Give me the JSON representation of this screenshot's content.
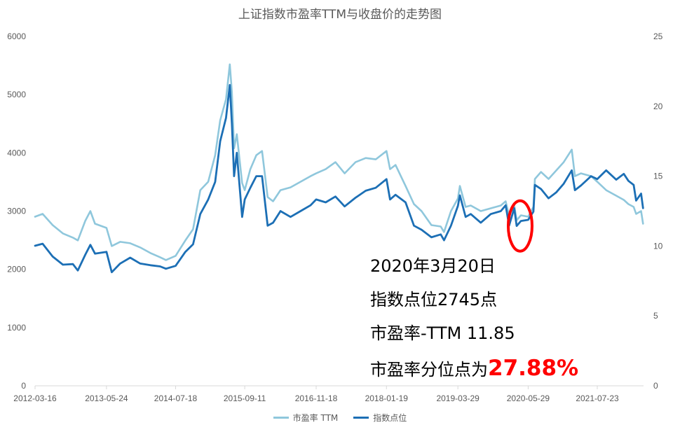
{
  "chart_data": {
    "type": "line",
    "title": "上证指数市盈率TTM与收盘价的走势图",
    "x_ticks": [
      "2012-03-16",
      "2013-05-24",
      "2014-07-18",
      "2015-09-11",
      "2016-11-18",
      "2018-01-19",
      "2019-03-29",
      "2020-05-29",
      "2021-07-23"
    ],
    "x_range": [
      "2012-03-16",
      "2022-04-30"
    ],
    "y_left": {
      "range": [
        0,
        6000
      ],
      "ticks": [
        "0",
        "1000",
        "2000",
        "3000",
        "4000",
        "5000",
        "6000"
      ]
    },
    "y_right": {
      "range": [
        0,
        25
      ],
      "ticks": [
        "0",
        "5",
        "10",
        "15",
        "20",
        "25"
      ]
    },
    "grid": false,
    "legend_position": "bottom",
    "series": [
      {
        "name": "市盈率 TTM",
        "axis": "right",
        "color": "#8fc7dc",
        "points": [
          [
            "2012-03-16",
            12.1
          ],
          [
            "2012-05-01",
            12.3
          ],
          [
            "2012-07-01",
            11.5
          ],
          [
            "2012-09-01",
            10.9
          ],
          [
            "2012-11-01",
            10.6
          ],
          [
            "2012-12-01",
            10.4
          ],
          [
            "2013-01-15",
            11.8
          ],
          [
            "2013-02-15",
            12.5
          ],
          [
            "2013-03-15",
            11.6
          ],
          [
            "2013-05-24",
            11.3
          ],
          [
            "2013-06-25",
            10.0
          ],
          [
            "2013-08-15",
            10.3
          ],
          [
            "2013-10-15",
            10.2
          ],
          [
            "2013-12-15",
            9.9
          ],
          [
            "2014-02-15",
            9.5
          ],
          [
            "2014-04-15",
            9.2
          ],
          [
            "2014-05-20",
            9.0
          ],
          [
            "2014-07-18",
            9.3
          ],
          [
            "2014-09-15",
            10.4
          ],
          [
            "2014-11-01",
            11.2
          ],
          [
            "2014-12-15",
            14.0
          ],
          [
            "2015-02-01",
            14.6
          ],
          [
            "2015-03-15",
            16.5
          ],
          [
            "2015-04-15",
            19.0
          ],
          [
            "2015-05-20",
            20.5
          ],
          [
            "2015-06-12",
            23.0
          ],
          [
            "2015-06-25",
            21.0
          ],
          [
            "2015-07-08",
            17.0
          ],
          [
            "2015-07-25",
            18.0
          ],
          [
            "2015-08-26",
            14.5
          ],
          [
            "2015-09-11",
            14.0
          ],
          [
            "2015-10-15",
            15.5
          ],
          [
            "2015-11-20",
            16.5
          ],
          [
            "2015-12-25",
            16.8
          ],
          [
            "2016-01-28",
            13.5
          ],
          [
            "2016-03-01",
            13.2
          ],
          [
            "2016-04-15",
            14.0
          ],
          [
            "2016-06-15",
            14.2
          ],
          [
            "2016-08-15",
            14.6
          ],
          [
            "2016-10-15",
            15.0
          ],
          [
            "2016-11-18",
            15.2
          ],
          [
            "2017-01-15",
            15.5
          ],
          [
            "2017-03-15",
            16.0
          ],
          [
            "2017-05-10",
            15.2
          ],
          [
            "2017-07-15",
            16.0
          ],
          [
            "2017-09-15",
            16.3
          ],
          [
            "2017-11-15",
            16.2
          ],
          [
            "2018-01-19",
            16.8
          ],
          [
            "2018-02-10",
            15.5
          ],
          [
            "2018-03-15",
            15.8
          ],
          [
            "2018-05-15",
            14.3
          ],
          [
            "2018-07-05",
            13.0
          ],
          [
            "2018-08-20",
            12.5
          ],
          [
            "2018-10-19",
            11.5
          ],
          [
            "2018-12-15",
            11.4
          ],
          [
            "2019-01-04",
            11.0
          ],
          [
            "2019-02-15",
            12.5
          ],
          [
            "2019-03-29",
            13.4
          ],
          [
            "2019-04-10",
            14.3
          ],
          [
            "2019-05-15",
            12.8
          ],
          [
            "2019-06-15",
            12.9
          ],
          [
            "2019-08-15",
            12.5
          ],
          [
            "2019-10-15",
            12.7
          ],
          [
            "2019-12-15",
            12.9
          ],
          [
            "2020-01-13",
            13.2
          ],
          [
            "2020-02-03",
            12.2
          ],
          [
            "2020-03-05",
            12.9
          ],
          [
            "2020-03-20",
            11.85
          ],
          [
            "2020-04-15",
            12.2
          ],
          [
            "2020-05-29",
            12.1
          ],
          [
            "2020-06-30",
            12.8
          ],
          [
            "2020-07-09",
            14.8
          ],
          [
            "2020-08-15",
            15.3
          ],
          [
            "2020-09-30",
            14.8
          ],
          [
            "2020-11-15",
            15.4
          ],
          [
            "2020-12-31",
            16.0
          ],
          [
            "2021-02-18",
            16.9
          ],
          [
            "2021-03-09",
            15.0
          ],
          [
            "2021-04-15",
            15.2
          ],
          [
            "2021-06-15",
            15.0
          ],
          [
            "2021-07-23",
            14.6
          ],
          [
            "2021-09-15",
            14.0
          ],
          [
            "2021-11-15",
            13.6
          ],
          [
            "2021-12-31",
            13.3
          ],
          [
            "2022-01-28",
            13.0
          ],
          [
            "2022-03-01",
            12.8
          ],
          [
            "2022-03-16",
            12.3
          ],
          [
            "2022-04-15",
            12.5
          ],
          [
            "2022-04-27",
            11.6
          ]
        ]
      },
      {
        "name": "指数点位",
        "axis": "left",
        "color": "#1c6fb5",
        "points": [
          [
            "2012-03-16",
            2405
          ],
          [
            "2012-05-01",
            2440
          ],
          [
            "2012-07-01",
            2220
          ],
          [
            "2012-09-01",
            2080
          ],
          [
            "2012-11-01",
            2090
          ],
          [
            "2012-12-01",
            1980
          ],
          [
            "2013-01-15",
            2250
          ],
          [
            "2013-02-15",
            2420
          ],
          [
            "2013-03-15",
            2270
          ],
          [
            "2013-05-24",
            2300
          ],
          [
            "2013-06-25",
            1950
          ],
          [
            "2013-08-15",
            2100
          ],
          [
            "2013-10-15",
            2200
          ],
          [
            "2013-12-15",
            2100
          ],
          [
            "2014-02-15",
            2070
          ],
          [
            "2014-04-15",
            2050
          ],
          [
            "2014-05-20",
            2010
          ],
          [
            "2014-07-18",
            2060
          ],
          [
            "2014-09-15",
            2300
          ],
          [
            "2014-11-01",
            2430
          ],
          [
            "2014-12-15",
            2950
          ],
          [
            "2015-02-01",
            3200
          ],
          [
            "2015-03-15",
            3500
          ],
          [
            "2015-04-15",
            4200
          ],
          [
            "2015-05-20",
            4600
          ],
          [
            "2015-06-12",
            5166
          ],
          [
            "2015-06-25",
            4500
          ],
          [
            "2015-07-08",
            3600
          ],
          [
            "2015-07-25",
            4000
          ],
          [
            "2015-08-26",
            2900
          ],
          [
            "2015-09-11",
            3200
          ],
          [
            "2015-10-15",
            3400
          ],
          [
            "2015-11-20",
            3600
          ],
          [
            "2015-12-25",
            3600
          ],
          [
            "2016-01-28",
            2750
          ],
          [
            "2016-03-01",
            2800
          ],
          [
            "2016-04-15",
            3000
          ],
          [
            "2016-06-15",
            2900
          ],
          [
            "2016-08-15",
            3000
          ],
          [
            "2016-10-15",
            3100
          ],
          [
            "2016-11-18",
            3200
          ],
          [
            "2017-01-15",
            3150
          ],
          [
            "2017-03-15",
            3250
          ],
          [
            "2017-05-10",
            3080
          ],
          [
            "2017-07-15",
            3230
          ],
          [
            "2017-09-15",
            3350
          ],
          [
            "2017-11-15",
            3400
          ],
          [
            "2018-01-19",
            3550
          ],
          [
            "2018-02-10",
            3200
          ],
          [
            "2018-03-15",
            3280
          ],
          [
            "2018-05-15",
            3150
          ],
          [
            "2018-07-05",
            2750
          ],
          [
            "2018-08-20",
            2680
          ],
          [
            "2018-10-19",
            2550
          ],
          [
            "2018-12-15",
            2600
          ],
          [
            "2019-01-04",
            2500
          ],
          [
            "2019-02-15",
            2750
          ],
          [
            "2019-03-29",
            3090
          ],
          [
            "2019-04-10",
            3270
          ],
          [
            "2019-05-15",
            2900
          ],
          [
            "2019-06-15",
            2950
          ],
          [
            "2019-08-15",
            2800
          ],
          [
            "2019-10-15",
            2950
          ],
          [
            "2019-12-15",
            3000
          ],
          [
            "2020-01-13",
            3100
          ],
          [
            "2020-02-03",
            2750
          ],
          [
            "2020-03-05",
            3050
          ],
          [
            "2020-03-20",
            2745
          ],
          [
            "2020-04-15",
            2830
          ],
          [
            "2020-05-29",
            2850
          ],
          [
            "2020-06-30",
            2990
          ],
          [
            "2020-07-09",
            3450
          ],
          [
            "2020-08-15",
            3380
          ],
          [
            "2020-09-30",
            3220
          ],
          [
            "2020-11-15",
            3320
          ],
          [
            "2020-12-31",
            3470
          ],
          [
            "2021-02-18",
            3700
          ],
          [
            "2021-03-09",
            3360
          ],
          [
            "2021-04-15",
            3440
          ],
          [
            "2021-06-15",
            3600
          ],
          [
            "2021-07-23",
            3550
          ],
          [
            "2021-09-15",
            3700
          ],
          [
            "2021-11-15",
            3540
          ],
          [
            "2021-12-31",
            3640
          ],
          [
            "2022-01-28",
            3520
          ],
          [
            "2022-03-01",
            3450
          ],
          [
            "2022-03-16",
            3180
          ],
          [
            "2022-04-15",
            3300
          ],
          [
            "2022-04-27",
            3050
          ]
        ]
      }
    ],
    "highlight": {
      "date": "2020-03-20",
      "value": 2745,
      "axis": "left",
      "shape": "ellipse",
      "color": "#ff0000"
    },
    "annotation": {
      "date_line": "2020年3月20日",
      "index_line": "指数点位2745点",
      "pe_line": "市盈率-TTM 11.85",
      "pct_label": "市盈率分位点为",
      "pct_value": "27.88%",
      "pct_color": "#ff0000"
    }
  }
}
